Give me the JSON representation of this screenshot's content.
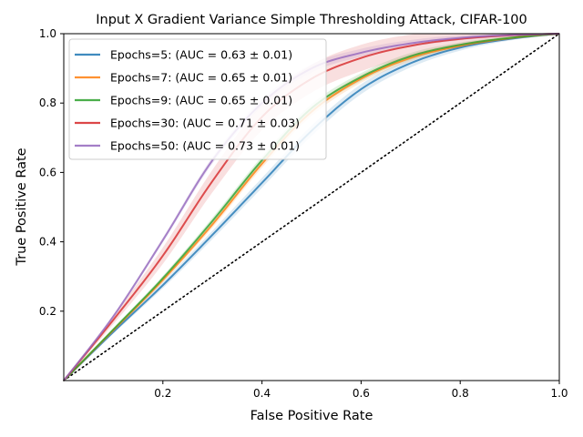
{
  "chart_data": {
    "type": "line",
    "title": "Input X Gradient Variance Simple Thresholding Attack, CIFAR-100",
    "xlabel": "False Positive Rate",
    "ylabel": "True Positive Rate",
    "xlim": [
      0,
      1
    ],
    "ylim": [
      0,
      1
    ],
    "xticks": [
      0.2,
      0.4,
      0.6,
      0.8,
      1.0
    ],
    "xtick_labels": [
      "0.2",
      "0.4",
      "0.6",
      "0.8",
      "1.0"
    ],
    "yticks": [
      0.2,
      0.4,
      0.6,
      0.8,
      1.0
    ],
    "ytick_labels": [
      "0.2",
      "0.4",
      "0.6",
      "0.8",
      "1.0"
    ],
    "grid": false,
    "legend_position": "top-left",
    "diagonal": {
      "x": [
        0,
        1
      ],
      "y": [
        0,
        1
      ],
      "style": "dotted",
      "color": "#000000"
    },
    "series": [
      {
        "name": "Epochs=5: (AUC = 0.63 ± 0.01)",
        "color": "#1f77b4",
        "x": [
          0,
          0.1,
          0.2,
          0.3,
          0.4,
          0.5,
          0.6,
          0.7,
          0.8,
          0.9,
          1.0
        ],
        "y": [
          0,
          0.14,
          0.275,
          0.42,
          0.57,
          0.72,
          0.84,
          0.915,
          0.96,
          0.985,
          1.0
        ],
        "band": 0.015
      },
      {
        "name": "Epochs=7: (AUC = 0.65 ± 0.01)",
        "color": "#ff7f0e",
        "x": [
          0,
          0.1,
          0.2,
          0.3,
          0.4,
          0.5,
          0.6,
          0.7,
          0.8,
          0.9,
          1.0
        ],
        "y": [
          0,
          0.145,
          0.29,
          0.45,
          0.625,
          0.775,
          0.87,
          0.93,
          0.965,
          0.987,
          1.0
        ],
        "band": 0.012
      },
      {
        "name": "Epochs=9: (AUC = 0.65 ± 0.01)",
        "color": "#2ca02c",
        "x": [
          0,
          0.1,
          0.2,
          0.3,
          0.4,
          0.5,
          0.6,
          0.7,
          0.8,
          0.9,
          1.0
        ],
        "y": [
          0,
          0.147,
          0.295,
          0.46,
          0.635,
          0.785,
          0.875,
          0.935,
          0.968,
          0.988,
          1.0
        ],
        "band": 0.012
      },
      {
        "name": "Epochs=30: (AUC = 0.71 ± 0.03)",
        "color": "#d62728",
        "x": [
          0,
          0.1,
          0.2,
          0.3,
          0.4,
          0.5,
          0.6,
          0.7,
          0.8,
          0.9,
          1.0
        ],
        "y": [
          0,
          0.175,
          0.36,
          0.575,
          0.76,
          0.87,
          0.93,
          0.965,
          0.985,
          0.995,
          1.0
        ],
        "band": 0.04
      },
      {
        "name": "Epochs=50: (AUC = 0.73 ± 0.01)",
        "color": "#9467bd",
        "x": [
          0,
          0.1,
          0.2,
          0.3,
          0.4,
          0.5,
          0.6,
          0.7,
          0.8,
          0.9,
          1.0
        ],
        "y": [
          0,
          0.185,
          0.405,
          0.635,
          0.8,
          0.9,
          0.945,
          0.972,
          0.988,
          0.996,
          1.0
        ],
        "band": 0.012
      }
    ]
  }
}
